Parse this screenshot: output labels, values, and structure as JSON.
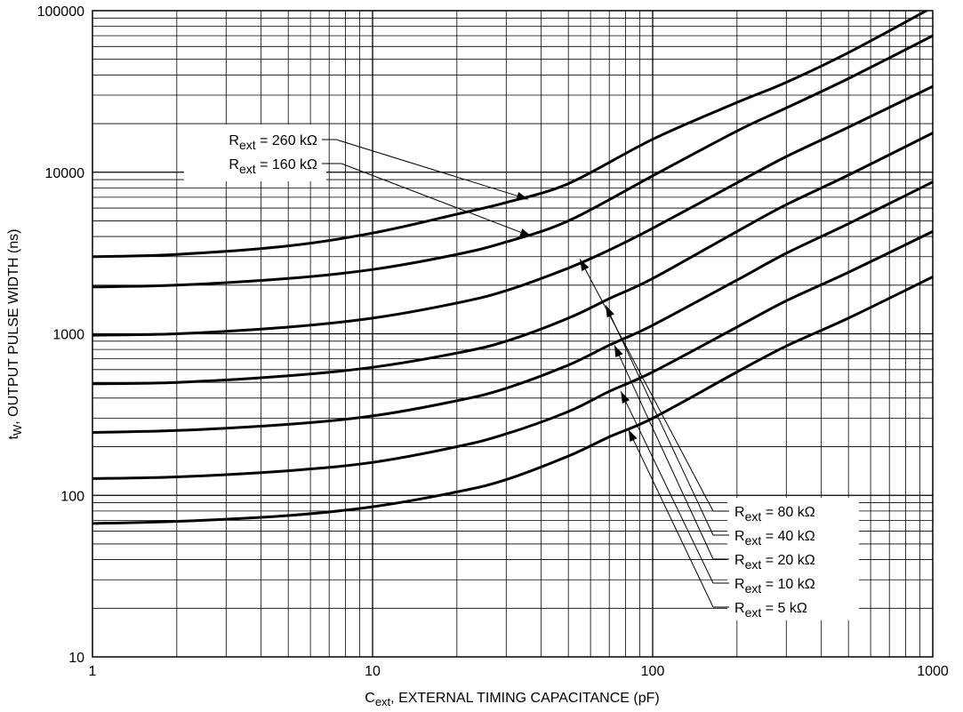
{
  "chart_data": {
    "type": "line",
    "xscale": "log",
    "yscale": "log",
    "xlim": [
      1,
      1000
    ],
    "ylim": [
      10,
      100000
    ],
    "grid": true,
    "xlabel": {
      "main": "C",
      "sub": "ext",
      "rest": ", EXTERNAL TIMING CAPACITANCE (pF)"
    },
    "ylabel": {
      "main": "t",
      "sub": "W",
      "rest": ", OUTPUT PULSE WIDTH (ns)"
    },
    "x_tick_labels": [
      "1",
      "10",
      "100",
      "1000"
    ],
    "y_tick_labels": [
      "10",
      "100",
      "1000",
      "10000",
      "100000"
    ],
    "series": [
      {
        "name": "Rext = 260 kΩ",
        "x": [
          1,
          2,
          5,
          10,
          20,
          30,
          50,
          100,
          200,
          300,
          500,
          1000
        ],
        "y": [
          3000,
          3100,
          3500,
          4200,
          5500,
          6500,
          8500,
          16000,
          27000,
          36000,
          55000,
          105000
        ]
      },
      {
        "name": "Rext = 160 kΩ",
        "x": [
          1,
          2,
          5,
          10,
          20,
          30,
          50,
          100,
          200,
          300,
          500,
          1000
        ],
        "y": [
          1950,
          2000,
          2200,
          2500,
          3100,
          3700,
          5000,
          9500,
          18000,
          25000,
          38000,
          70000
        ]
      },
      {
        "name": "Rext = 80 kΩ",
        "x": [
          1,
          2,
          5,
          10,
          20,
          30,
          50,
          70,
          100,
          200,
          300,
          500,
          1000
        ],
        "y": [
          980,
          1000,
          1100,
          1250,
          1550,
          1850,
          2550,
          3300,
          4500,
          8600,
          12500,
          19000,
          34000
        ]
      },
      {
        "name": "Rext = 40 kΩ",
        "x": [
          1,
          2,
          5,
          10,
          20,
          30,
          50,
          70,
          100,
          200,
          300,
          500,
          1000
        ],
        "y": [
          490,
          500,
          550,
          620,
          760,
          900,
          1250,
          1650,
          2200,
          4300,
          6300,
          9600,
          17500
        ]
      },
      {
        "name": "Rext = 20 kΩ",
        "x": [
          1,
          2,
          5,
          10,
          20,
          30,
          50,
          70,
          100,
          200,
          300,
          500,
          1000
        ],
        "y": [
          245,
          252,
          275,
          310,
          385,
          460,
          640,
          850,
          1130,
          2150,
          3150,
          4800,
          8700
        ]
      },
      {
        "name": "Rext = 10 kΩ",
        "x": [
          1,
          2,
          5,
          10,
          20,
          30,
          50,
          70,
          100,
          200,
          300,
          500,
          1000
        ],
        "y": [
          127,
          130,
          142,
          160,
          200,
          240,
          330,
          440,
          580,
          1100,
          1600,
          2400,
          4300
        ]
      },
      {
        "name": "Rext = 5 kΩ",
        "x": [
          1,
          2,
          5,
          10,
          20,
          30,
          50,
          70,
          100,
          200,
          300,
          500,
          1000
        ],
        "y": [
          67,
          69,
          75,
          85,
          105,
          125,
          175,
          230,
          300,
          580,
          840,
          1250,
          2250
        ]
      }
    ],
    "annotations_top": [
      {
        "main": "R",
        "sub": "ext",
        "rest": " = 260 kΩ",
        "target": [
          36,
          6800
        ]
      },
      {
        "main": "R",
        "sub": "ext",
        "rest": " = 160 kΩ",
        "target": [
          37,
          4000
        ]
      }
    ],
    "annotations_bottom": [
      {
        "main": "R",
        "sub": "ext",
        "rest": " = 80 kΩ",
        "target": [
          55,
          2900
        ]
      },
      {
        "main": "R",
        "sub": "ext",
        "rest": " = 40 kΩ",
        "target": [
          68,
          1500
        ]
      },
      {
        "main": "R",
        "sub": "ext",
        "rest": " = 20 kΩ",
        "target": [
          73,
          850
        ]
      },
      {
        "main": "R",
        "sub": "ext",
        "rest": " = 10 kΩ",
        "target": [
          77,
          440
        ]
      },
      {
        "main": "R",
        "sub": "ext",
        "rest": " = 5 kΩ",
        "target": [
          82,
          255
        ]
      }
    ],
    "colors": {
      "line": "#000000",
      "grid": "#000000",
      "background": "#ffffff"
    }
  }
}
